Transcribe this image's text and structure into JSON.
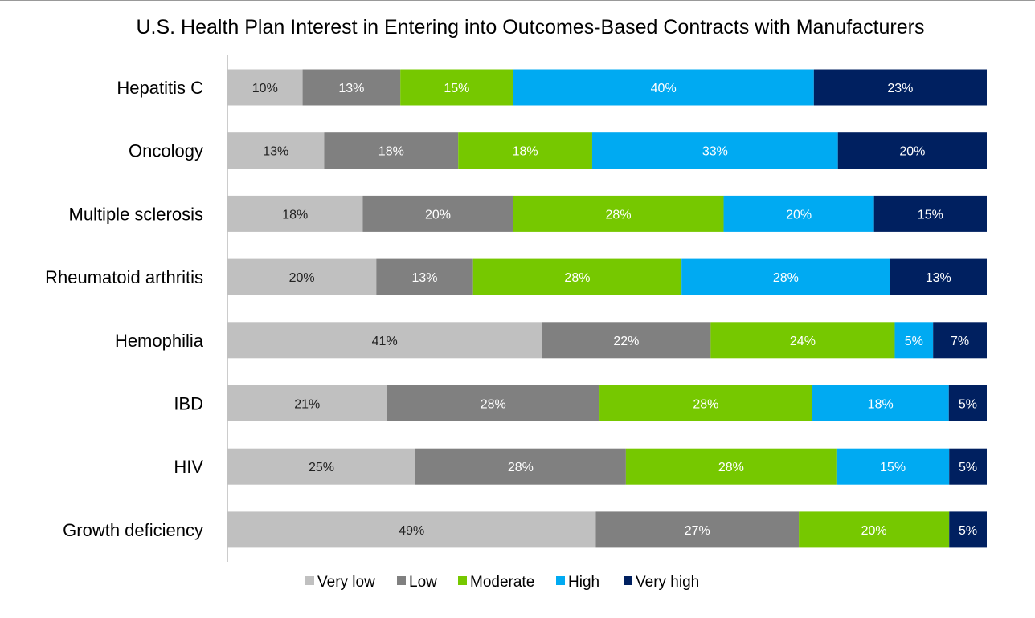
{
  "chart_data": {
    "type": "bar",
    "orientation": "horizontal-stacked-100",
    "title": "U.S. Health Plan Interest in Entering into Outcomes-Based Contracts with Manufacturers",
    "categories": [
      "Hepatitis C",
      "Oncology",
      "Multiple sclerosis",
      "Rheumatoid arthritis",
      "Hemophilia",
      "IBD",
      "HIV",
      "Growth deficiency"
    ],
    "series": [
      {
        "name": "Very low",
        "color": "#c0c0c0",
        "values": [
          10,
          13,
          18,
          20,
          41,
          21,
          25,
          49
        ]
      },
      {
        "name": "Low",
        "color": "#808080",
        "values": [
          13,
          18,
          20,
          13,
          22,
          28,
          28,
          27
        ]
      },
      {
        "name": "Moderate",
        "color": "#76c800",
        "values": [
          15,
          18,
          28,
          28,
          24,
          28,
          28,
          20
        ]
      },
      {
        "name": "High",
        "color": "#00aaf2",
        "values": [
          40,
          33,
          20,
          28,
          5,
          18,
          15,
          0
        ]
      },
      {
        "name": "Very high",
        "color": "#002060",
        "values": [
          23,
          20,
          15,
          13,
          7,
          5,
          5,
          5
        ]
      }
    ],
    "value_format": "percent",
    "legend": "bottom",
    "grid": false
  }
}
